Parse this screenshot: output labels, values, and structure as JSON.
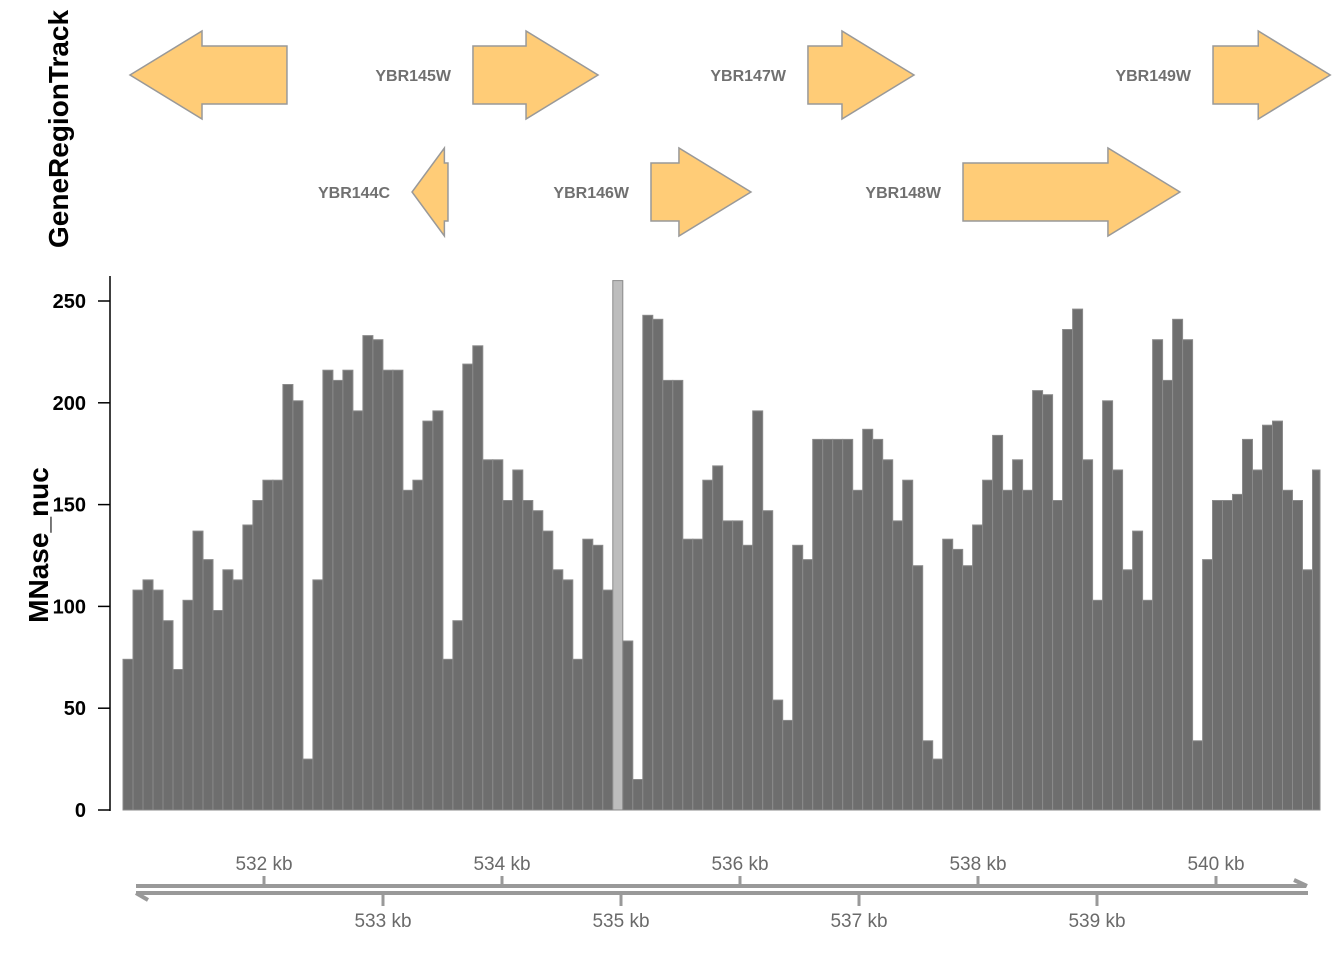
{
  "gene_track": {
    "title": "GeneRegionTrack",
    "fill_color": "#FFCC77",
    "border_color": "#999999",
    "genes": [
      {
        "label": "",
        "start_kb": 530.874,
        "end_kb": 532.193,
        "strand": "-",
        "row": 0
      },
      {
        "label": "YBR144C",
        "start_kb": 533.244,
        "end_kb": 533.546,
        "strand": "-",
        "row": 1
      },
      {
        "label": "YBR145W",
        "start_kb": 533.756,
        "end_kb": 534.807,
        "strand": "+",
        "row": 0
      },
      {
        "label": "YBR146W",
        "start_kb": 535.252,
        "end_kb": 536.092,
        "strand": "+",
        "row": 1
      },
      {
        "label": "YBR147W",
        "start_kb": 536.571,
        "end_kb": 537.462,
        "strand": "+",
        "row": 0
      },
      {
        "label": "YBR148W",
        "start_kb": 537.874,
        "end_kb": 539.697,
        "strand": "+",
        "row": 1
      },
      {
        "label": "YBR149W",
        "start_kb": 539.975,
        "end_kb": 540.96,
        "strand": "+",
        "row": 0
      }
    ]
  },
  "chart_data": {
    "type": "bar",
    "ylabel": "MNase_nuc",
    "ylim": [
      0,
      260
    ],
    "yticks": [
      0,
      50,
      100,
      150,
      200,
      250
    ],
    "xlim_kb": [
      530.815,
      540.87
    ],
    "x_start_kb": 530.815,
    "bin_width_kb": 0.084,
    "bar_color": "#6E6E6E",
    "values": [
      74,
      108,
      113,
      108,
      93,
      69,
      103,
      137,
      123,
      98,
      118,
      113,
      140,
      152,
      162,
      162,
      209,
      201,
      25,
      113,
      216,
      211,
      216,
      196,
      233,
      231,
      216,
      216,
      157,
      162,
      191,
      196,
      74,
      93,
      219,
      228,
      172,
      172,
      152,
      167,
      152,
      147,
      137,
      118,
      113,
      74,
      133,
      130,
      108,
      262,
      83,
      15,
      243,
      241,
      211,
      211,
      133,
      133,
      162,
      169,
      142,
      142,
      130,
      196,
      147,
      54,
      44,
      130,
      123,
      182,
      182,
      182,
      182,
      157,
      187,
      182,
      172,
      142,
      162,
      120,
      34,
      25,
      133,
      128,
      120,
      140,
      162,
      184,
      157,
      172,
      157,
      206,
      204,
      152,
      236,
      246,
      172,
      103,
      201,
      167,
      118,
      137,
      103,
      231,
      211,
      241,
      231,
      34,
      123,
      152,
      152,
      155,
      182,
      167,
      189,
      191,
      157,
      152,
      118,
      167
    ]
  },
  "genome_axis": {
    "ticks_kb": [
      532,
      533,
      534,
      535,
      536,
      537,
      538,
      539,
      540
    ],
    "labels": [
      "532 kb",
      "533 kb",
      "534 kb",
      "535 kb",
      "536 kb",
      "537 kb",
      "538 kb",
      "539 kb",
      "540 kb"
    ],
    "color": "#999999"
  }
}
